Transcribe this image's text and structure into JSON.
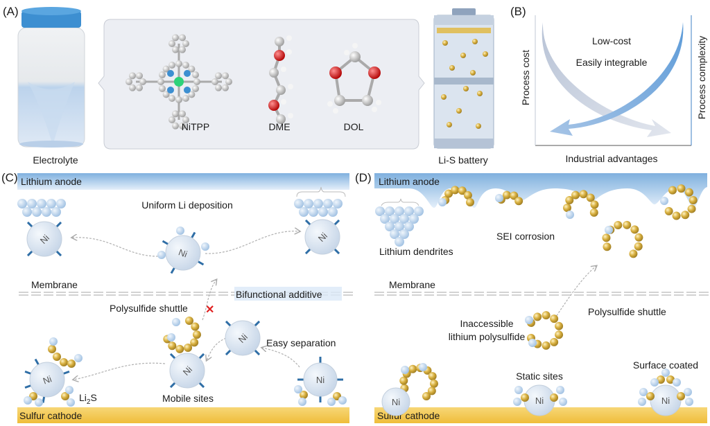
{
  "panels": {
    "a": "(A)",
    "b": "(B)",
    "c": "(C)",
    "d": "(D)"
  },
  "panel_a": {
    "electrolyte": "Electrolyte",
    "molecules": [
      "NiTPP",
      "DME",
      "DOL"
    ],
    "battery": "Li-S battery"
  },
  "panel_b": {
    "y_left": "Process cost",
    "y_right": "Process complexity",
    "x_axis": "Industrial advantages",
    "line1": "Low-cost",
    "line2": "Easily integrable"
  },
  "panel_c": {
    "anode": "Lithium anode",
    "cathode": "Sulfur cathode",
    "uniform": "Uniform Li deposition",
    "membrane": "Membrane",
    "additive": "Bifunctional additive",
    "shuttle": "Polysulfide shuttle",
    "easy_sep": "Easy separation",
    "mobile": "Mobile sites",
    "li2s_main": "Li",
    "li2s_sub": "2",
    "li2s_end": "S",
    "ni": "Ni"
  },
  "panel_d": {
    "anode": "Lithium anode",
    "cathode": "Sulfur cathode",
    "dendrites": "Lithium dendrites",
    "sei": "SEI corrosion",
    "membrane": "Membrane",
    "shuttle": "Polysulfide shuttle",
    "inaccessible1": "Inaccessible",
    "inaccessible2": "lithium polysulfide",
    "static": "Static sites",
    "coated": "Surface coated",
    "ni": "Ni"
  },
  "colors": {
    "anode": "#9cc3e6",
    "cathode": "#f2c44a",
    "ni_particle": "#dce6f2",
    "ligand": "#2f6ea6",
    "sulfur": "#c9a235",
    "lithium": "#b9d3ec",
    "blocked": "#e02020"
  }
}
